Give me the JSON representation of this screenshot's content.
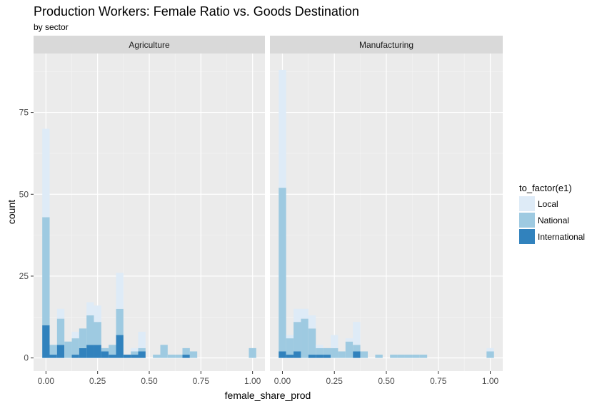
{
  "chart_data": {
    "type": "bar",
    "stacked": true,
    "histogram": true,
    "title": "Production Workers: Female Ratio vs. Goods Destination",
    "subtitle": "by sector",
    "xlabel": "female_share_prod",
    "ylabel": "count",
    "xlim": [
      -0.06,
      1.06
    ],
    "ylim": [
      -4,
      93
    ],
    "x_ticks": [
      0.0,
      0.25,
      0.5,
      0.75,
      1.0
    ],
    "x_tick_labels": [
      "0.00",
      "0.25",
      "0.50",
      "0.75",
      "1.00"
    ],
    "y_ticks": [
      0,
      25,
      50,
      75
    ],
    "y_tick_labels": [
      "0",
      "25",
      "50",
      "75"
    ],
    "grid": true,
    "legend": {
      "title": "to_factor(e1)",
      "position": "right",
      "entries": [
        {
          "name": "Local",
          "color": "#deebf7"
        },
        {
          "name": "National",
          "color": "#9ecae1"
        },
        {
          "name": "International",
          "color": "#3182bd"
        }
      ]
    },
    "bin_centers": [
      0.0,
      0.0357,
      0.0714,
      0.1071,
      0.1429,
      0.1786,
      0.2143,
      0.25,
      0.2857,
      0.3214,
      0.3571,
      0.3929,
      0.4286,
      0.4643,
      0.5,
      0.5357,
      0.5714,
      0.6071,
      0.6429,
      0.6786,
      0.7143,
      0.75,
      0.7857,
      0.8214,
      0.8571,
      0.8929,
      0.9286,
      0.9643,
      1.0
    ],
    "bin_width": 0.0357,
    "panels": [
      {
        "strip": "Agriculture",
        "series": [
          {
            "name": "International",
            "values": [
              10,
              1,
              4,
              0,
              1,
              3,
              4,
              4,
              2,
              1,
              7,
              1,
              1,
              2,
              0,
              0,
              0,
              0,
              0,
              1,
              0,
              0,
              0,
              0,
              0,
              0,
              0,
              0,
              0
            ]
          },
          {
            "name": "National",
            "values": [
              33,
              3,
              8,
              5,
              5,
              6,
              9,
              7,
              1,
              3,
              8,
              0,
              1,
              1,
              0,
              1,
              4,
              1,
              1,
              2,
              2,
              0,
              0,
              0,
              0,
              0,
              0,
              0,
              3
            ]
          },
          {
            "name": "Local",
            "values": [
              27,
              0,
              3,
              0,
              2,
              0,
              4,
              5,
              0,
              0,
              11,
              0,
              1,
              5,
              0,
              0,
              0,
              0,
              0,
              0,
              0,
              0,
              0,
              0,
              0,
              0,
              0,
              0,
              0
            ]
          }
        ]
      },
      {
        "strip": "Manufacturing",
        "series": [
          {
            "name": "International",
            "values": [
              2,
              1,
              2,
              0,
              1,
              1,
              1,
              0,
              0,
              0,
              2,
              0,
              0,
              0,
              0,
              0,
              0,
              0,
              0,
              0,
              0,
              0,
              0,
              0,
              0,
              0,
              0,
              0,
              0
            ]
          },
          {
            "name": "National",
            "values": [
              50,
              5,
              9,
              12,
              8,
              2,
              2,
              3,
              2,
              5,
              2,
              2,
              0,
              1,
              0,
              1,
              1,
              1,
              1,
              1,
              0,
              0,
              0,
              0,
              0,
              0,
              0,
              0,
              2
            ]
          },
          {
            "name": "Local",
            "values": [
              36,
              1,
              4,
              3,
              4,
              1,
              0,
              4,
              0,
              1,
              7,
              0,
              0,
              0,
              0,
              0,
              0,
              0,
              0,
              0,
              0,
              0,
              0,
              0,
              0,
              0,
              0,
              0,
              1
            ]
          }
        ]
      }
    ]
  }
}
